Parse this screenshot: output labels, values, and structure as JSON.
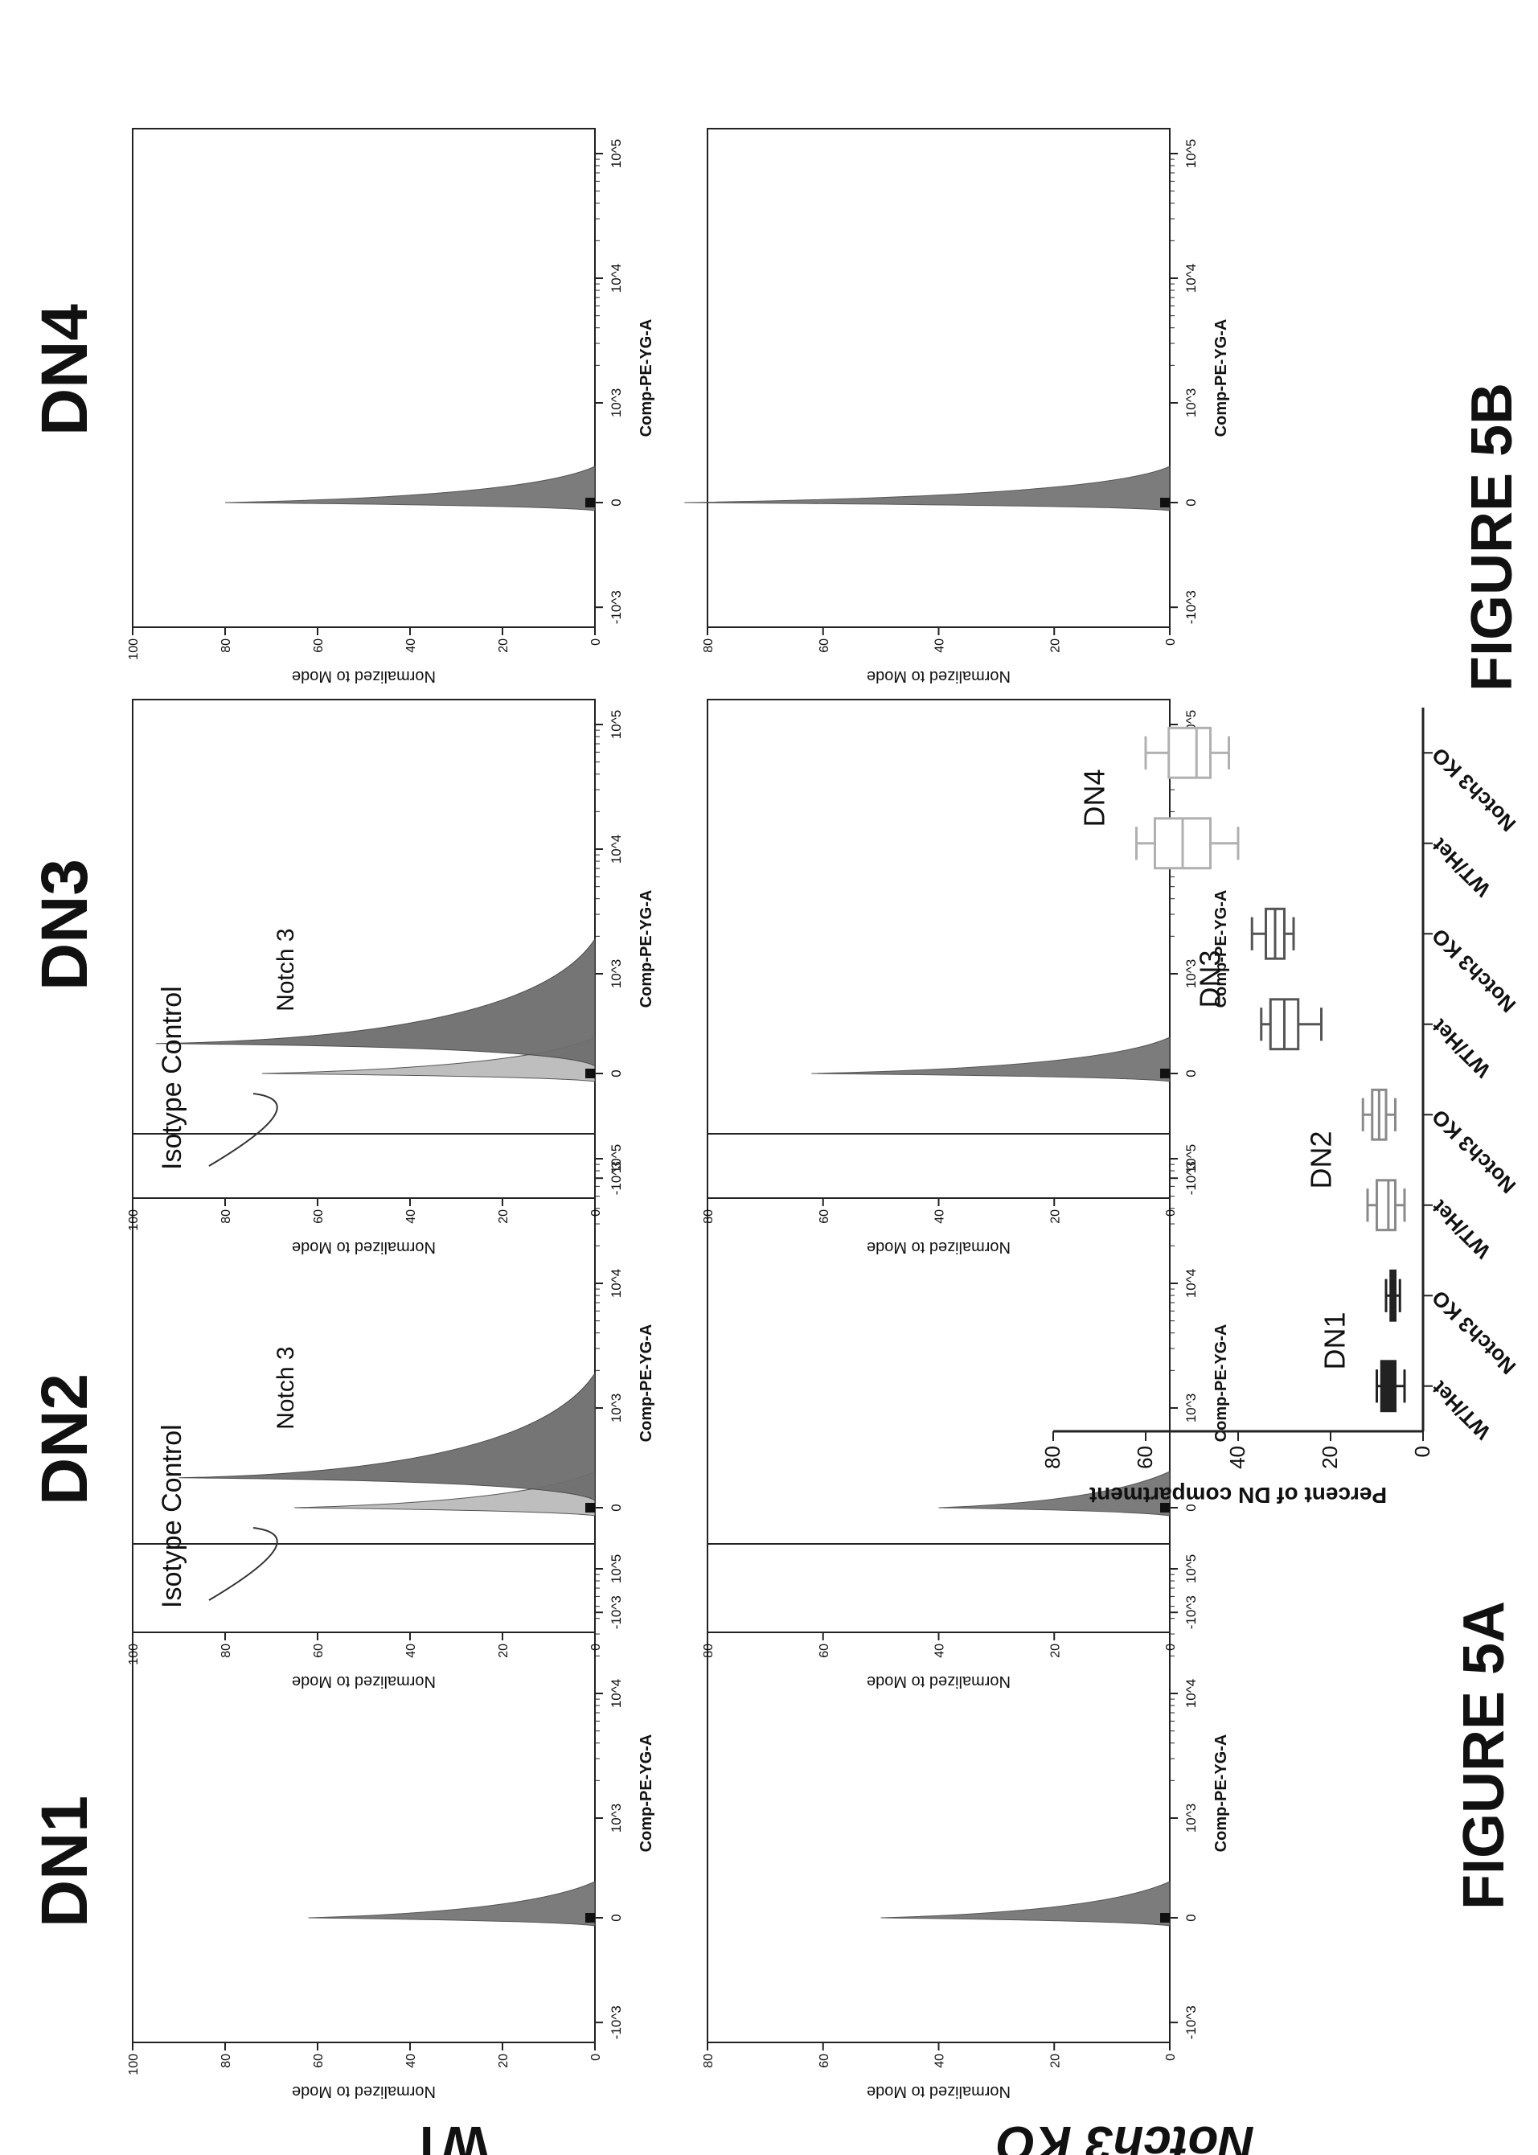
{
  "figure_labels": {
    "fig_a": "FIGURE 5A",
    "fig_b": "FIGURE 5B"
  },
  "columns": [
    "DN1",
    "DN2",
    "DN3",
    "DN4"
  ],
  "rows": [
    "WT",
    "Notch3 KO"
  ],
  "histogram_common": {
    "xlabel": "Comp-PE-YG-A",
    "ylabel": "Normalized to Mode",
    "xticks": [
      "-10^3",
      "0",
      "10^3",
      "10^4",
      "10^5"
    ]
  },
  "annotations": {
    "isotype": "Isotype Control",
    "notch3": "Notch 3"
  },
  "colors": {
    "isotype_fill": "#b8b8b8",
    "notch_fill": "#6e6e6e",
    "axis": "#222222",
    "dn1": "#222222",
    "dn2": "#8a8a8a",
    "dn3": "#555555",
    "dn4": "#b0b0b0"
  },
  "chart_data": [
    {
      "type": "area",
      "panel": "DN1-WT",
      "ylim": [
        0,
        100
      ],
      "yticks": [
        0,
        20,
        40,
        60,
        80,
        100
      ],
      "series": [
        {
          "values": [
            {
              "x": 0,
              "y": 62
            }
          ]
        }
      ]
    },
    {
      "type": "area",
      "panel": "DN2-WT",
      "ylim": [
        0,
        100
      ],
      "yticks": [
        0,
        20,
        40,
        60,
        80,
        100
      ],
      "series": [
        {
          "name": "Isotype Control",
          "values": [
            {
              "x": 0,
              "y": 65
            }
          ]
        },
        {
          "name": "Notch 3",
          "values": [
            {
              "x": 300,
              "y": 90
            }
          ]
        }
      ]
    },
    {
      "type": "area",
      "panel": "DN3-WT",
      "ylim": [
        0,
        100
      ],
      "yticks": [
        0,
        20,
        40,
        60,
        80,
        100
      ],
      "series": [
        {
          "name": "Isotype Control",
          "values": [
            {
              "x": 0,
              "y": 72
            }
          ]
        },
        {
          "name": "Notch 3",
          "values": [
            {
              "x": 300,
              "y": 95
            }
          ]
        }
      ]
    },
    {
      "type": "area",
      "panel": "DN4-WT",
      "ylim": [
        0,
        100
      ],
      "yticks": [
        0,
        20,
        40,
        60,
        80,
        100
      ],
      "series": [
        {
          "values": [
            {
              "x": 0,
              "y": 80
            }
          ]
        }
      ]
    },
    {
      "type": "area",
      "panel": "DN1-Notch3KO",
      "ylim": [
        0,
        80
      ],
      "yticks": [
        0,
        20,
        40,
        60,
        80
      ],
      "series": [
        {
          "values": [
            {
              "x": 0,
              "y": 50
            }
          ]
        }
      ]
    },
    {
      "type": "area",
      "panel": "DN2-Notch3KO",
      "ylim": [
        0,
        80
      ],
      "yticks": [
        0,
        20,
        40,
        60,
        80
      ],
      "series": [
        {
          "values": [
            {
              "x": 0,
              "y": 40
            }
          ]
        }
      ]
    },
    {
      "type": "area",
      "panel": "DN3-Notch3KO",
      "ylim": [
        0,
        80
      ],
      "yticks": [
        0,
        20,
        40,
        60,
        80
      ],
      "series": [
        {
          "values": [
            {
              "x": 0,
              "y": 62
            }
          ]
        }
      ]
    },
    {
      "type": "area",
      "panel": "DN4-Notch3KO",
      "ylim": [
        0,
        80
      ],
      "yticks": [
        0,
        20,
        40,
        60,
        80
      ],
      "series": [
        {
          "values": [
            {
              "x": 0,
              "y": 84
            }
          ]
        }
      ]
    },
    {
      "type": "box",
      "panel": "FIGURE 5B",
      "ylabel": "Percent of DN compartment",
      "ylim": [
        0,
        80
      ],
      "yticks": [
        0,
        20,
        40,
        60,
        80
      ],
      "categories": [
        "WT/Het",
        "Notch3 KO",
        "WT/Het",
        "Notch3 KO",
        "WT/Het",
        "Notch3 KO",
        "WT/Het",
        "Notch3 KO"
      ],
      "group_labels": [
        "DN1",
        "DN2",
        "DN3",
        "DN4"
      ],
      "boxes": [
        {
          "group": "DN1",
          "genotype": "WT/Het",
          "min": 4,
          "q1": 6,
          "median": 7,
          "q3": 9,
          "max": 10
        },
        {
          "group": "DN1",
          "genotype": "Notch3 KO",
          "min": 5,
          "q1": 6,
          "median": 6.5,
          "q3": 7,
          "max": 8
        },
        {
          "group": "DN2",
          "genotype": "WT/Het",
          "min": 4,
          "q1": 6,
          "median": 7.5,
          "q3": 10,
          "max": 12
        },
        {
          "group": "DN2",
          "genotype": "Notch3 KO",
          "min": 6,
          "q1": 8,
          "median": 9.5,
          "q3": 11,
          "max": 13
        },
        {
          "group": "DN3",
          "genotype": "WT/Het",
          "min": 22,
          "q1": 27,
          "median": 30,
          "q3": 33,
          "max": 35
        },
        {
          "group": "DN3",
          "genotype": "Notch3 KO",
          "min": 28,
          "q1": 30,
          "median": 32,
          "q3": 34,
          "max": 37
        },
        {
          "group": "DN4",
          "genotype": "WT/Het",
          "min": 40,
          "q1": 46,
          "median": 52,
          "q3": 58,
          "max": 62
        },
        {
          "group": "DN4",
          "genotype": "Notch3 KO",
          "min": 42,
          "q1": 46,
          "median": 49,
          "q3": 55,
          "max": 60
        }
      ]
    }
  ]
}
